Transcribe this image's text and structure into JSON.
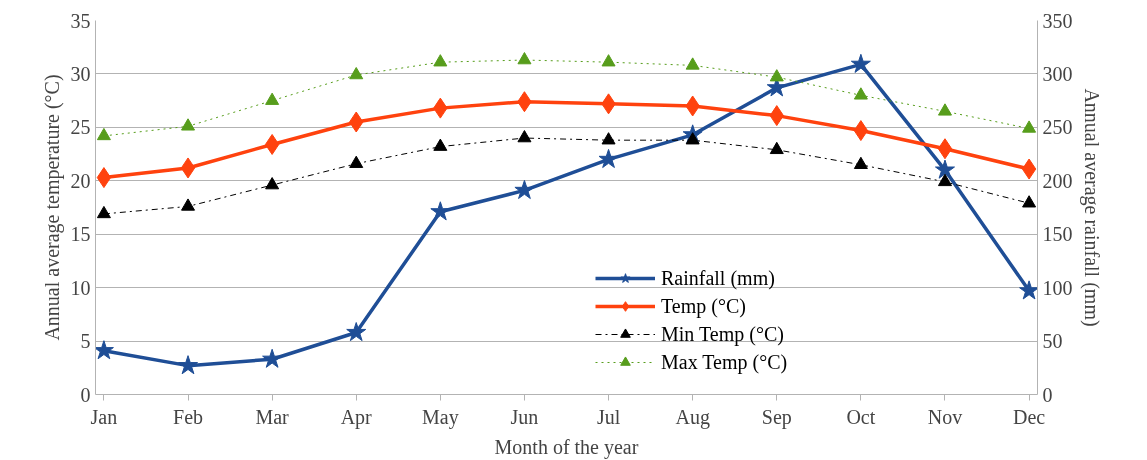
{
  "chart_data": {
    "type": "line",
    "xlabel": "Month of the year",
    "ylabel": "Annual average temperature (°C)",
    "y2label": "Annual average rainfall (mm)",
    "categories": [
      "Jan",
      "Feb",
      "Mar",
      "Apr",
      "May",
      "Jun",
      "Jul",
      "Aug",
      "Sep",
      "Oct",
      "Nov",
      "Dec"
    ],
    "ylim": [
      0,
      35
    ],
    "yticks": [
      0,
      5,
      10,
      15,
      20,
      25,
      30,
      35
    ],
    "y2lim": [
      0,
      350
    ],
    "y2ticks": [
      0,
      50,
      100,
      150,
      200,
      250,
      300,
      350
    ],
    "grid": "y",
    "legend": "bottom right",
    "series": [
      {
        "name": "Rainfall (mm)",
        "color": "#1f4e96",
        "axis": "y2",
        "marker": "star",
        "line_style": "solid",
        "values": [
          41,
          27,
          33,
          58,
          171,
          191,
          220,
          243,
          287,
          309,
          210,
          97
        ]
      },
      {
        "name": "Temp (°C)",
        "color": "#ff420e",
        "marker": "diamond",
        "line_style": "solid",
        "values": [
          20.3,
          21.2,
          23.4,
          25.5,
          26.8,
          27.4,
          27.2,
          27.0,
          26.1,
          24.7,
          23.0,
          21.1
        ]
      },
      {
        "name": "Min Temp (°C)",
        "color": "#000000",
        "marker": "triangle",
        "line_style": "dashdot",
        "values": [
          16.9,
          17.6,
          19.6,
          21.6,
          23.2,
          24.0,
          23.8,
          23.8,
          22.9,
          21.5,
          19.9,
          17.9
        ]
      },
      {
        "name": "Max Temp (°C)",
        "color": "#579d1c",
        "marker": "triangle",
        "line_style": "dotted",
        "values": [
          24.2,
          25.1,
          27.5,
          29.9,
          31.1,
          31.3,
          31.1,
          30.8,
          29.7,
          28.0,
          26.5,
          24.9
        ]
      }
    ]
  }
}
